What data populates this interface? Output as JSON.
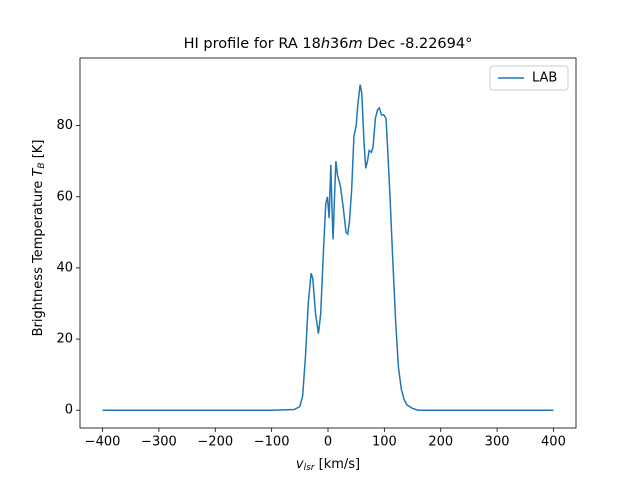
{
  "chart_data": {
    "type": "line",
    "title": {
      "prefix": "HI profile for RA 18",
      "h": "h",
      "mid": "36",
      "m": "m",
      "suffix": " Dec -8.22694°"
    },
    "xlabel": {
      "var": "v",
      "sub": "lsr",
      "unit": " [km/s]"
    },
    "ylabel": {
      "text": "Brightness Temperature ",
      "var": "T",
      "sub": "B",
      "unit": " [K]"
    },
    "x": [
      -400,
      -300,
      -200,
      -100,
      -60,
      -50,
      -45,
      -40,
      -35,
      -30,
      -27,
      -22,
      -17,
      -13,
      -8,
      -4,
      -1,
      2,
      5,
      7,
      9,
      12,
      14,
      17,
      22,
      27,
      32,
      35,
      38,
      42,
      46,
      50,
      53,
      57,
      60,
      64,
      67,
      70,
      73,
      77,
      80,
      84,
      88,
      91,
      95,
      99,
      103,
      106,
      110,
      115,
      120,
      125,
      130,
      135,
      140,
      150,
      160,
      200,
      300,
      400
    ],
    "series": [
      {
        "name": "LAB",
        "color": "#1f77b4",
        "values": [
          0,
          0,
          0,
          0,
          0.2,
          1,
          4,
          15,
          30,
          38.5,
          37,
          27,
          21.5,
          27,
          45,
          58,
          60,
          54,
          69,
          57,
          48,
          62,
          70,
          66,
          63,
          57,
          50,
          49.5,
          53,
          62,
          77,
          80,
          86,
          91.5,
          89,
          75,
          68,
          70,
          73,
          72.5,
          74,
          82,
          84.5,
          85,
          83,
          83,
          82,
          73,
          60,
          42,
          25,
          12,
          6,
          3,
          1.5,
          0.5,
          0,
          0,
          0,
          0
        ]
      }
    ],
    "xlim": [
      -440,
      440
    ],
    "ylim": [
      -5,
      99
    ],
    "xticks": [
      {
        "value": -400,
        "label": "−400"
      },
      {
        "value": -300,
        "label": "−300"
      },
      {
        "value": -200,
        "label": "−200"
      },
      {
        "value": -100,
        "label": "−100"
      },
      0,
      100,
      200,
      300,
      400
    ],
    "yticks": [
      0,
      20,
      40,
      60,
      80
    ],
    "legend": "upper right"
  }
}
